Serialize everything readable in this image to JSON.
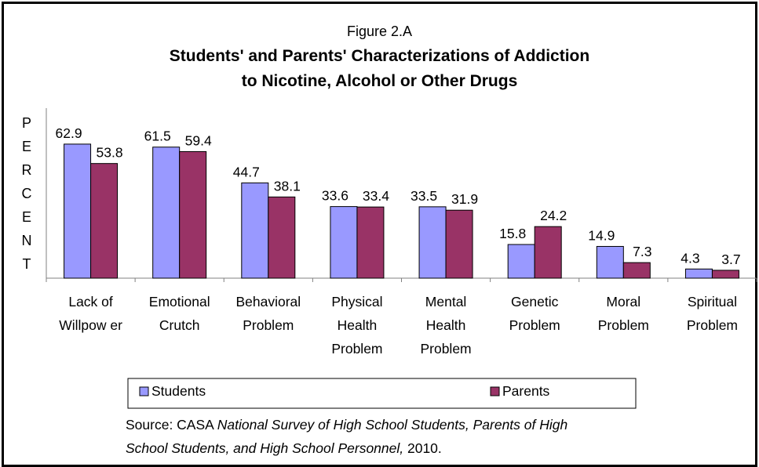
{
  "figure_label": "Figure 2.A",
  "title_lines": [
    "Students' and Parents' Characterizations of Addiction",
    "to Nicotine, Alcohol or Other Drugs"
  ],
  "ylabel_letters": [
    "P",
    "E",
    "R",
    "C",
    "E",
    "N",
    "T"
  ],
  "source": {
    "prefix": "Source: CASA ",
    "italic_line1": "National Survey of High School Students, Parents of High",
    "italic_line2": "School Students, and High School Personnel,",
    "suffix": " 2010."
  },
  "colors": {
    "students": "#9999FF",
    "parents": "#993366",
    "axis": "#808080",
    "frame": "#000000"
  },
  "chart_data": {
    "type": "bar",
    "title": "Students' and Parents' Characterizations of Addiction to Nicotine, Alcohol or Other Drugs",
    "ylabel": "PERCENT",
    "xlabel": "",
    "ylim": [
      0,
      70
    ],
    "grid": false,
    "legend_position": "bottom",
    "categories": [
      [
        "Lack of",
        "Willpow er"
      ],
      [
        "Emotional",
        "Crutch"
      ],
      [
        "Behavioral",
        "Problem"
      ],
      [
        "Physical",
        "Health",
        "Problem"
      ],
      [
        "Mental",
        "Health",
        "Problem"
      ],
      [
        "Genetic",
        "Problem"
      ],
      [
        "Moral",
        "Problem"
      ],
      [
        "Spiritual",
        "Problem"
      ]
    ],
    "series": [
      {
        "name": "Students",
        "color": "#9999FF",
        "values": [
          62.9,
          61.5,
          44.7,
          33.6,
          33.5,
          15.8,
          14.9,
          4.3
        ]
      },
      {
        "name": "Parents",
        "color": "#993366",
        "values": [
          53.8,
          59.4,
          38.1,
          33.4,
          31.9,
          24.2,
          7.3,
          3.7
        ]
      }
    ]
  }
}
